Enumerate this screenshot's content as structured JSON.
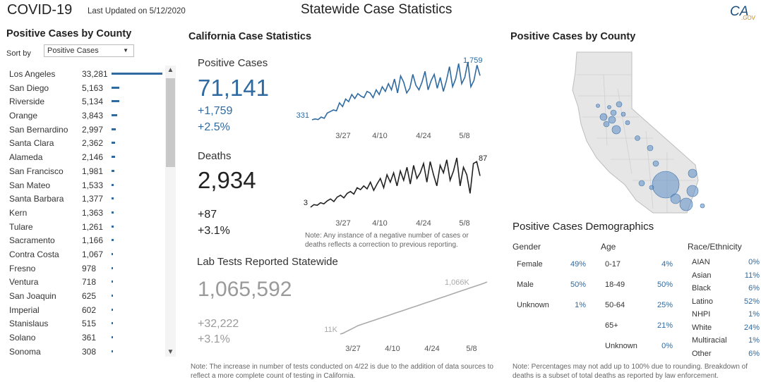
{
  "header": {
    "app_title": "COVID-19",
    "last_updated": "Last Updated on 5/12/2020",
    "page_title": "Statewide Case Statistics",
    "logo_text": "CA",
    "logo_sub": ".GOV"
  },
  "left_panel": {
    "title": "Positive Cases by County",
    "sort_label": "Sort by",
    "sort_value": "Positive Cases",
    "counties": [
      {
        "name": "Los Angeles",
        "value": "33,281",
        "cases": 33281
      },
      {
        "name": "San Diego",
        "value": "5,163",
        "cases": 5163
      },
      {
        "name": "Riverside",
        "value": "5,134",
        "cases": 5134
      },
      {
        "name": "Orange",
        "value": "3,843",
        "cases": 3843
      },
      {
        "name": "San Bernardino",
        "value": "2,997",
        "cases": 2997
      },
      {
        "name": "Santa Clara",
        "value": "2,362",
        "cases": 2362
      },
      {
        "name": "Alameda",
        "value": "2,146",
        "cases": 2146
      },
      {
        "name": "San Francisco",
        "value": "1,981",
        "cases": 1981
      },
      {
        "name": "San Mateo",
        "value": "1,533",
        "cases": 1533
      },
      {
        "name": "Santa Barbara",
        "value": "1,377",
        "cases": 1377
      },
      {
        "name": "Kern",
        "value": "1,363",
        "cases": 1363
      },
      {
        "name": "Tulare",
        "value": "1,261",
        "cases": 1261
      },
      {
        "name": "Sacramento",
        "value": "1,166",
        "cases": 1166
      },
      {
        "name": "Contra Costa",
        "value": "1,067",
        "cases": 1067
      },
      {
        "name": "Fresno",
        "value": "978",
        "cases": 978
      },
      {
        "name": "Ventura",
        "value": "718",
        "cases": 718
      },
      {
        "name": "San Joaquin",
        "value": "625",
        "cases": 625
      },
      {
        "name": "Imperial",
        "value": "602",
        "cases": 602
      },
      {
        "name": "Stanislaus",
        "value": "515",
        "cases": 515
      },
      {
        "name": "Solano",
        "value": "361",
        "cases": 361
      },
      {
        "name": "Sonoma",
        "value": "308",
        "cases": 308
      }
    ]
  },
  "stats": {
    "title": "California Case Statistics",
    "positive": {
      "label": "Positive Cases",
      "total": "71,141",
      "delta": "+1,759",
      "pct": "+2.5%"
    },
    "deaths": {
      "label": "Deaths",
      "total": "2,934",
      "delta": "+87",
      "pct": "+3.1%"
    },
    "tests": {
      "label": "Lab Tests Reported Statewide",
      "total": "1,065,592",
      "delta": "+32,222",
      "pct": "+3.1%"
    },
    "note_negative": "Note: Any instance of a negative number of cases or deaths reflects a correction to previous reporting.",
    "note_tests": "Note: The increase in number of tests conducted on 4/22 is due to the addition of data sources to reflect a more complete count of testing in California."
  },
  "chart_data": [
    {
      "type": "line",
      "x_ticks": [
        "3/27",
        "4/10",
        "4/24",
        "5/8"
      ],
      "start_label": "331",
      "end_label": "1,759",
      "color": "#2f6aa0",
      "values": [
        331,
        360,
        340,
        420,
        380,
        550,
        600,
        650,
        620,
        880,
        760,
        1000,
        920,
        1150,
        1020,
        1180,
        1100,
        1050,
        1250,
        1200,
        1050,
        1300,
        1150,
        1400,
        1250,
        1500,
        1300,
        1650,
        1200,
        1750,
        1550,
        1200,
        1350,
        1800,
        1450,
        1300,
        1550,
        1900,
        1300,
        1600,
        1800,
        1350,
        1700,
        1250,
        1600,
        2050,
        1400,
        1650,
        2150,
        1500,
        1700,
        2200,
        1400,
        1600,
        2100,
        1759
      ]
    },
    {
      "type": "line",
      "x_ticks": [
        "3/27",
        "4/10",
        "4/24",
        "5/8"
      ],
      "start_label": "3",
      "end_label": "87",
      "color": "#222222",
      "values": [
        3,
        10,
        8,
        15,
        12,
        20,
        25,
        18,
        30,
        35,
        28,
        40,
        45,
        38,
        55,
        50,
        60,
        52,
        70,
        48,
        65,
        80,
        55,
        90,
        70,
        95,
        60,
        100,
        75,
        110,
        65,
        115,
        80,
        95,
        120,
        70,
        125,
        90,
        60,
        115,
        95,
        130,
        75,
        100,
        135,
        60,
        110,
        90,
        40,
        120,
        125,
        87
      ]
    },
    {
      "type": "line",
      "x_ticks": [
        "3/27",
        "4/10",
        "4/24",
        "5/8"
      ],
      "start_label": "11K",
      "end_label": "1,066K",
      "color": "#aaaaaa",
      "values": [
        11000,
        30000,
        60000,
        90000,
        120000,
        150000,
        180000,
        200000,
        220000,
        240000,
        260000,
        280000,
        300000,
        320000,
        340000,
        360000,
        380000,
        400000,
        420000,
        440000,
        460000,
        480000,
        500000,
        520000,
        540000,
        560000,
        580000,
        600000,
        620000,
        640000,
        660000,
        680000,
        700000,
        720000,
        740000,
        760000,
        780000,
        800000,
        820000,
        840000,
        860000,
        880000,
        900000,
        920000,
        940000,
        960000,
        980000,
        1000000,
        1020000,
        1040000,
        1066000
      ]
    }
  ],
  "map": {
    "title": "Positive Cases by County"
  },
  "demographics": {
    "title": "Positive Cases Demographics",
    "gender": {
      "header": "Gender",
      "rows": [
        {
          "label": "Female",
          "pct": "49%"
        },
        {
          "label": "Male",
          "pct": "50%"
        },
        {
          "label": "Unknown",
          "pct": "1%"
        }
      ]
    },
    "age": {
      "header": "Age",
      "rows": [
        {
          "label": "0-17",
          "pct": "4%"
        },
        {
          "label": "18-49",
          "pct": "50%"
        },
        {
          "label": "50-64",
          "pct": "25%"
        },
        {
          "label": "65+",
          "pct": "21%"
        },
        {
          "label": "Unknown",
          "pct": "0%"
        }
      ]
    },
    "race": {
      "header": "Race/Ethnicity",
      "rows": [
        {
          "label": "AIAN",
          "pct": "0%"
        },
        {
          "label": "Asian",
          "pct": "11%"
        },
        {
          "label": "Black",
          "pct": "6%"
        },
        {
          "label": "Latino",
          "pct": "52%"
        },
        {
          "label": "NHPI",
          "pct": "1%"
        },
        {
          "label": "White",
          "pct": "24%"
        },
        {
          "label": "Multiracial",
          "pct": "1%"
        },
        {
          "label": "Other",
          "pct": "6%"
        }
      ]
    },
    "note": "Note: Percentages may not add up to 100% due to rounding. Breakdown of deaths is a subset of total deaths as reported by law enforcement."
  }
}
